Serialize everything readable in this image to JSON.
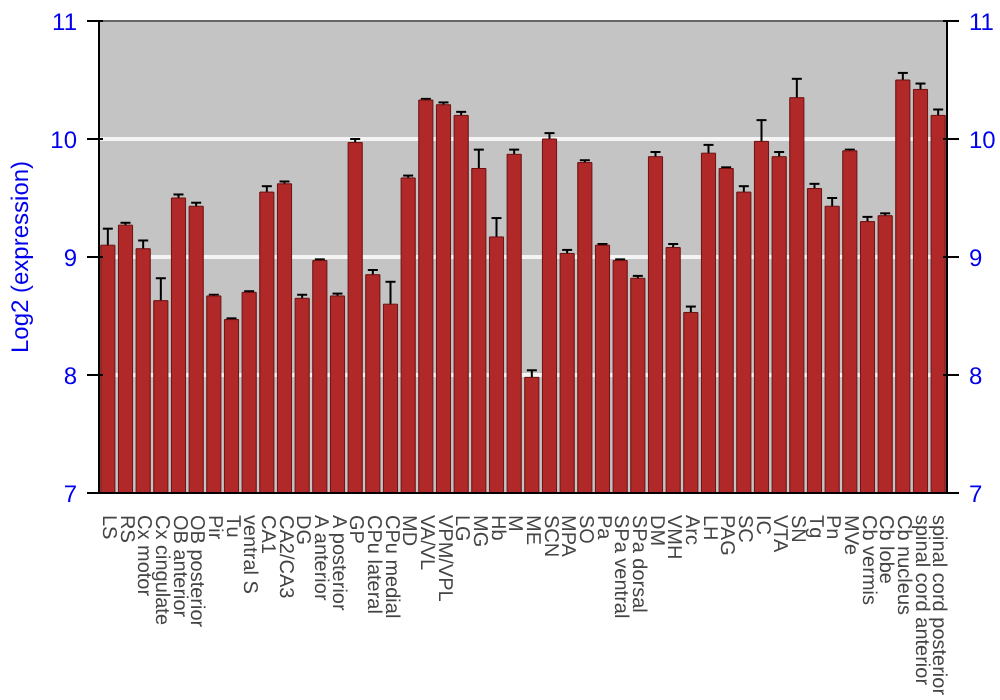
{
  "chart_data": {
    "type": "bar",
    "ylabel": "Log2 (expression)",
    "categories": [
      "LS",
      "RS",
      "Cx motor",
      "Cx cingulate",
      "OB anterior",
      "OB posterior",
      "Pir",
      "Tu",
      "ventral S",
      "CA1",
      "CA2/CA3",
      "DG",
      "A anterior",
      "A posterior",
      "GP",
      "CPu lateral",
      "CPu medial",
      "MD",
      "VA/VL",
      "VPM/VPL",
      "LG",
      "MG",
      "Hb",
      "M",
      "ME",
      "SCN",
      "MPA",
      "SO",
      "Pa",
      "SPa ventral",
      "SPa dorsal",
      "DM",
      "VMH",
      "Arc",
      "LH",
      "PAG",
      "SC",
      "IC",
      "VTA",
      "SN",
      "Tg",
      "Pn",
      "MVe",
      "Cb vermis",
      "Cb lobe",
      "Cb nucleus",
      "spinal cord anterior",
      "spinal cord posterior"
    ],
    "values": [
      9.1,
      9.27,
      9.07,
      8.63,
      9.5,
      9.43,
      8.67,
      8.47,
      8.7,
      9.55,
      9.62,
      8.65,
      8.97,
      8.67,
      9.97,
      8.85,
      8.6,
      9.67,
      10.33,
      10.29,
      10.2,
      9.75,
      9.17,
      9.87,
      7.98,
      10.0,
      9.03,
      9.8,
      9.1,
      8.97,
      8.82,
      9.85,
      9.08,
      8.53,
      9.88,
      9.75,
      9.55,
      9.98,
      9.85,
      10.35,
      9.58,
      9.43,
      9.9,
      9.3,
      9.35,
      10.5,
      10.42,
      10.2
    ],
    "errors": [
      0.14,
      0.02,
      0.07,
      0.19,
      0.03,
      0.03,
      0.01,
      0.01,
      0.01,
      0.05,
      0.02,
      0.03,
      0.01,
      0.02,
      0.03,
      0.04,
      0.19,
      0.02,
      0.01,
      0.02,
      0.03,
      0.16,
      0.16,
      0.04,
      0.06,
      0.05,
      0.03,
      0.02,
      0.01,
      0.01,
      0.02,
      0.04,
      0.03,
      0.05,
      0.07,
      0.01,
      0.05,
      0.18,
      0.04,
      0.16,
      0.04,
      0.07,
      0.01,
      0.04,
      0.02,
      0.06,
      0.05,
      0.05
    ],
    "color": "#b02828",
    "ylim": [
      7,
      11
    ],
    "yticks": [
      7,
      8,
      9,
      10,
      11
    ],
    "y2lim": [
      7,
      11
    ],
    "y2ticks": [
      7,
      8,
      9,
      10,
      11
    ],
    "grid": "y"
  }
}
